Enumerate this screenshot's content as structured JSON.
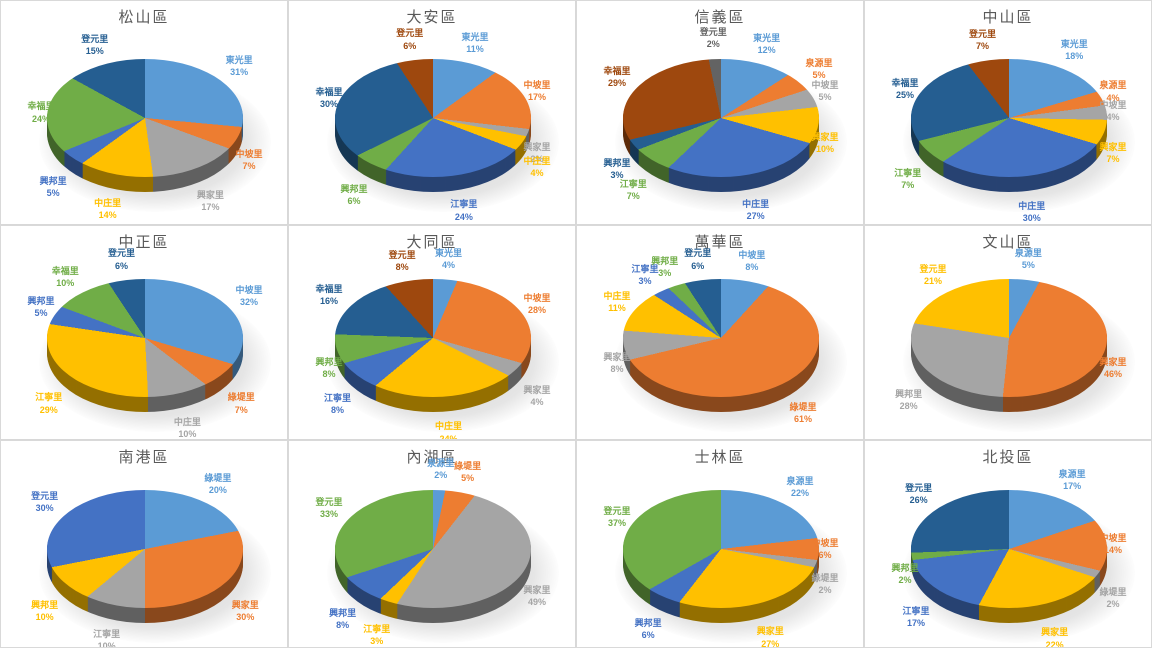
{
  "chart_data": [
    {
      "type": "pie",
      "title": "松山區",
      "legend_position": "none",
      "slices": [
        {
          "label": "東光里",
          "value": 31,
          "pct": "31%",
          "color": "#5B9BD5"
        },
        {
          "label": "中坡里",
          "value": 7,
          "pct": "7%",
          "color": "#ED7D31"
        },
        {
          "label": "興家里",
          "value": 17,
          "pct": "17%",
          "color": "#A5A5A5"
        },
        {
          "label": "中庄里",
          "value": 14,
          "pct": "14%",
          "color": "#FFC000"
        },
        {
          "label": "興邦里",
          "value": 5,
          "pct": "5%",
          "color": "#4472C4"
        },
        {
          "label": "幸福里",
          "value": 24,
          "pct": "24%",
          "color": "#70AD47"
        },
        {
          "label": "登元里",
          "value": 15,
          "pct": "15%",
          "color": "#255E91"
        }
      ]
    },
    {
      "type": "pie",
      "title": "大安區",
      "legend_position": "none",
      "slices": [
        {
          "label": "東光里",
          "value": 11,
          "pct": "11%",
          "color": "#5B9BD5"
        },
        {
          "label": "中坡里",
          "value": 17,
          "pct": "17%",
          "color": "#ED7D31"
        },
        {
          "label": "興家里",
          "value": 2,
          "pct": "2%",
          "color": "#A5A5A5"
        },
        {
          "label": "中庄里",
          "value": 4,
          "pct": "4%",
          "color": "#FFC000"
        },
        {
          "label": "江寧里",
          "value": 24,
          "pct": "24%",
          "color": "#4472C4"
        },
        {
          "label": "興邦里",
          "value": 6,
          "pct": "6%",
          "color": "#70AD47"
        },
        {
          "label": "幸福里",
          "value": 30,
          "pct": "30%",
          "color": "#255E91"
        },
        {
          "label": "登元里",
          "value": 6,
          "pct": "6%",
          "color": "#9E480E"
        }
      ]
    },
    {
      "type": "pie",
      "title": "信義區",
      "legend_position": "none",
      "slices": [
        {
          "label": "東光里",
          "value": 12,
          "pct": "12%",
          "color": "#5B9BD5"
        },
        {
          "label": "泉源里",
          "value": 5,
          "pct": "5%",
          "color": "#ED7D31"
        },
        {
          "label": "中坡里",
          "value": 5,
          "pct": "5%",
          "color": "#A5A5A5"
        },
        {
          "label": "興家里",
          "value": 10,
          "pct": "10%",
          "color": "#FFC000"
        },
        {
          "label": "中庄里",
          "value": 27,
          "pct": "27%",
          "color": "#4472C4"
        },
        {
          "label": "江寧里",
          "value": 7,
          "pct": "7%",
          "color": "#70AD47"
        },
        {
          "label": "興邦里",
          "value": 3,
          "pct": "3%",
          "color": "#255E91"
        },
        {
          "label": "幸福里",
          "value": 29,
          "pct": "29%",
          "color": "#9E480E"
        },
        {
          "label": "登元里",
          "value": 2,
          "pct": "2%",
          "color": "#636363"
        }
      ]
    },
    {
      "type": "pie",
      "title": "中山區",
      "legend_position": "none",
      "slices": [
        {
          "label": "東光里",
          "value": 18,
          "pct": "18%",
          "color": "#5B9BD5"
        },
        {
          "label": "泉源里",
          "value": 4,
          "pct": "4%",
          "color": "#ED7D31"
        },
        {
          "label": "中坡里",
          "value": 4,
          "pct": "4%",
          "color": "#A5A5A5"
        },
        {
          "label": "興家里",
          "value": 7,
          "pct": "7%",
          "color": "#FFC000"
        },
        {
          "label": "中庄里",
          "value": 30,
          "pct": "30%",
          "color": "#4472C4"
        },
        {
          "label": "江寧里",
          "value": 7,
          "pct": "7%",
          "color": "#70AD47"
        },
        {
          "label": "幸福里",
          "value": 25,
          "pct": "25%",
          "color": "#255E91"
        },
        {
          "label": "登元里",
          "value": 7,
          "pct": "7%",
          "color": "#9E480E"
        }
      ]
    },
    {
      "type": "pie",
      "title": "中正區",
      "legend_position": "none",
      "slices": [
        {
          "label": "中坡里",
          "value": 32,
          "pct": "32%",
          "color": "#5B9BD5"
        },
        {
          "label": "綠堤里",
          "value": 7,
          "pct": "7%",
          "color": "#ED7D31"
        },
        {
          "label": "中庄里",
          "value": 10,
          "pct": "10%",
          "color": "#A5A5A5"
        },
        {
          "label": "江寧里",
          "value": 29,
          "pct": "29%",
          "color": "#FFC000"
        },
        {
          "label": "興邦里",
          "value": 5,
          "pct": "5%",
          "color": "#4472C4"
        },
        {
          "label": "幸福里",
          "value": 10,
          "pct": "10%",
          "color": "#70AD47"
        },
        {
          "label": "登元里",
          "value": 6,
          "pct": "6%",
          "color": "#255E91"
        }
      ]
    },
    {
      "type": "pie",
      "title": "大同區",
      "legend_position": "none",
      "slices": [
        {
          "label": "東光里",
          "value": 4,
          "pct": "4%",
          "color": "#5B9BD5"
        },
        {
          "label": "中坡里",
          "value": 28,
          "pct": "28%",
          "color": "#ED7D31"
        },
        {
          "label": "興家里",
          "value": 4,
          "pct": "4%",
          "color": "#A5A5A5"
        },
        {
          "label": "中庄里",
          "value": 24,
          "pct": "24%",
          "color": "#FFC000"
        },
        {
          "label": "江寧里",
          "value": 8,
          "pct": "8%",
          "color": "#4472C4"
        },
        {
          "label": "興邦里",
          "value": 8,
          "pct": "8%",
          "color": "#70AD47"
        },
        {
          "label": "幸福里",
          "value": 16,
          "pct": "16%",
          "color": "#255E91"
        },
        {
          "label": "登元里",
          "value": 8,
          "pct": "8%",
          "color": "#9E480E"
        }
      ]
    },
    {
      "type": "pie",
      "title": "萬華區",
      "legend_position": "none",
      "slices": [
        {
          "label": "中坡里",
          "value": 8,
          "pct": "8%",
          "color": "#5B9BD5"
        },
        {
          "label": "綠堤里",
          "value": 61,
          "pct": "61%",
          "color": "#ED7D31"
        },
        {
          "label": "興家里",
          "value": 8,
          "pct": "8%",
          "color": "#A5A5A5"
        },
        {
          "label": "中庄里",
          "value": 11,
          "pct": "11%",
          "color": "#FFC000"
        },
        {
          "label": "江寧里",
          "value": 3,
          "pct": "3%",
          "color": "#4472C4"
        },
        {
          "label": "興邦里",
          "value": 3,
          "pct": "3%",
          "color": "#70AD47"
        },
        {
          "label": "登元里",
          "value": 6,
          "pct": "6%",
          "color": "#255E91"
        }
      ]
    },
    {
      "type": "pie",
      "title": "文山區",
      "legend_position": "none",
      "slices": [
        {
          "label": "泉源里",
          "value": 5,
          "pct": "5%",
          "color": "#5B9BD5"
        },
        {
          "label": "興家里",
          "value": 46,
          "pct": "46%",
          "color": "#ED7D31"
        },
        {
          "label": "興邦里",
          "value": 28,
          "pct": "28%",
          "color": "#A5A5A5"
        },
        {
          "label": "登元里",
          "value": 21,
          "pct": "21%",
          "color": "#FFC000"
        }
      ]
    },
    {
      "type": "pie",
      "title": "南港區",
      "legend_position": "none",
      "slices": [
        {
          "label": "綠堤里",
          "value": 20,
          "pct": "20%",
          "color": "#5B9BD5"
        },
        {
          "label": "興家里",
          "value": 30,
          "pct": "30%",
          "color": "#ED7D31"
        },
        {
          "label": "江寧里",
          "value": 10,
          "pct": "10%",
          "color": "#A5A5A5"
        },
        {
          "label": "興邦里",
          "value": 10,
          "pct": "10%",
          "color": "#FFC000"
        },
        {
          "label": "登元里",
          "value": 30,
          "pct": "30%",
          "color": "#4472C4"
        }
      ]
    },
    {
      "type": "pie",
      "title": "內湖區",
      "legend_position": "none",
      "slices": [
        {
          "label": "泉源里",
          "value": 2,
          "pct": "2%",
          "color": "#5B9BD5"
        },
        {
          "label": "綠堤里",
          "value": 5,
          "pct": "5%",
          "color": "#ED7D31"
        },
        {
          "label": "興家里",
          "value": 49,
          "pct": "49%",
          "color": "#A5A5A5"
        },
        {
          "label": "江寧里",
          "value": 3,
          "pct": "3%",
          "color": "#FFC000"
        },
        {
          "label": "興邦里",
          "value": 8,
          "pct": "8%",
          "color": "#4472C4"
        },
        {
          "label": "登元里",
          "value": 33,
          "pct": "33%",
          "color": "#70AD47"
        }
      ]
    },
    {
      "type": "pie",
      "title": "士林區",
      "legend_position": "none",
      "slices": [
        {
          "label": "泉源里",
          "value": 22,
          "pct": "22%",
          "color": "#5B9BD5"
        },
        {
          "label": "中坡里",
          "value": 6,
          "pct": "6%",
          "color": "#ED7D31"
        },
        {
          "label": "綠堤里",
          "value": 2,
          "pct": "2%",
          "color": "#A5A5A5"
        },
        {
          "label": "興家里",
          "value": 27,
          "pct": "27%",
          "color": "#FFC000"
        },
        {
          "label": "興邦里",
          "value": 6,
          "pct": "6%",
          "color": "#4472C4"
        },
        {
          "label": "登元里",
          "value": 37,
          "pct": "37%",
          "color": "#70AD47"
        }
      ]
    },
    {
      "type": "pie",
      "title": "北投區",
      "legend_position": "none",
      "slices": [
        {
          "label": "泉源里",
          "value": 17,
          "pct": "17%",
          "color": "#5B9BD5"
        },
        {
          "label": "中坡里",
          "value": 14,
          "pct": "14%",
          "color": "#ED7D31"
        },
        {
          "label": "綠堤里",
          "value": 2,
          "pct": "2%",
          "color": "#A5A5A5"
        },
        {
          "label": "興家里",
          "value": 22,
          "pct": "22%",
          "color": "#FFC000"
        },
        {
          "label": "江寧里",
          "value": 17,
          "pct": "17%",
          "color": "#4472C4"
        },
        {
          "label": "興邦里",
          "value": 2,
          "pct": "2%",
          "color": "#70AD47"
        },
        {
          "label": "登元里",
          "value": 26,
          "pct": "26%",
          "color": "#255E91"
        }
      ]
    }
  ]
}
